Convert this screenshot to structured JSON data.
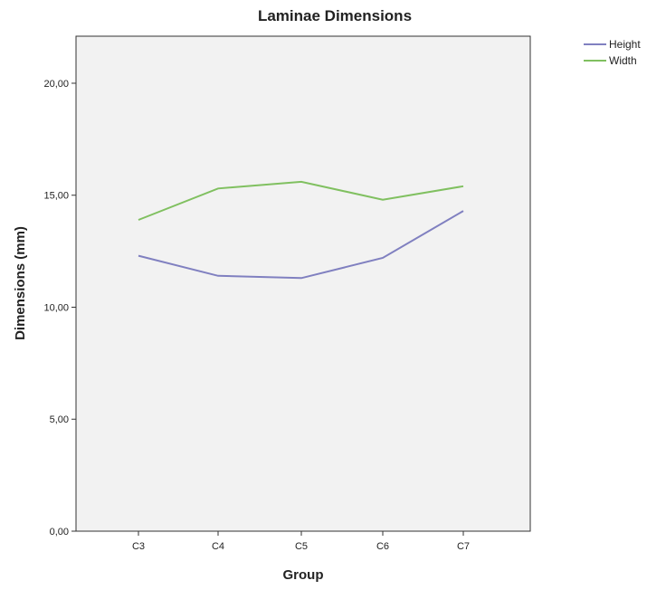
{
  "chart_data": {
    "type": "line",
    "title": "Laminae Dimensions",
    "xlabel": "Group",
    "ylabel": "Dimensions (mm)",
    "categories": [
      "C3",
      "C4",
      "C5",
      "C6",
      "C7"
    ],
    "ylim": [
      0,
      22.1
    ],
    "yticks": [
      0,
      5,
      10,
      15,
      20
    ],
    "ytick_labels": [
      "0,00",
      "5,00",
      "10,00",
      "15,00",
      "20,00"
    ],
    "grid": false,
    "legend_position": "top-right outside",
    "plot_background": "#f2f2f2",
    "series": [
      {
        "name": "Height",
        "color": "#8080c0",
        "values": [
          12.3,
          11.4,
          11.3,
          12.2,
          14.3
        ]
      },
      {
        "name": "Width",
        "color": "#80c060",
        "values": [
          13.9,
          15.3,
          15.6,
          14.8,
          15.4
        ]
      }
    ]
  }
}
